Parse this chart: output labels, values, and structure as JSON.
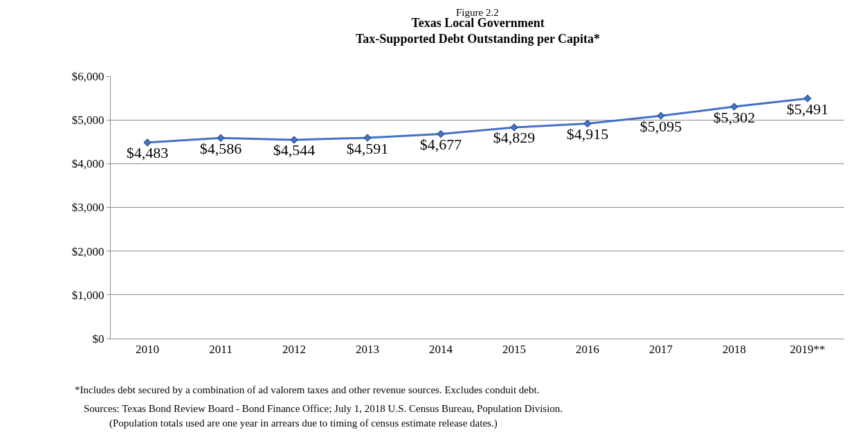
{
  "chart_data": {
    "type": "line",
    "subtitle": "Figure 2.2",
    "title": "Texas Local Government\nTax-Supported Debt Outstanding per Capita*",
    "categories": [
      "2010",
      "2011",
      "2012",
      "2013",
      "2014",
      "2015",
      "2016",
      "2017",
      "2018",
      "2019**"
    ],
    "series": [
      {
        "color": "#4472c4",
        "values": [
          4483,
          4586,
          4544,
          4591,
          4677,
          4829,
          4915,
          5095,
          5302,
          5491
        ]
      }
    ],
    "value_labels": [
      "$4,483",
      "$4,586",
      "$4,544",
      "$4,591",
      "$4,677",
      "$4,829",
      "$4,915",
      "$5,095",
      "$5,302",
      "$5,491"
    ],
    "ylim": [
      0,
      6000
    ],
    "yticks": [
      {
        "value": 0,
        "label": "$0"
      },
      {
        "value": 1000,
        "label": "$1,000"
      },
      {
        "value": 2000,
        "label": "$2,000"
      },
      {
        "value": 3000,
        "label": "$3,000"
      },
      {
        "value": 4000,
        "label": "$4,000"
      },
      {
        "value": 5000,
        "label": "$5,000"
      },
      {
        "value": 6000,
        "label": "$6,000"
      }
    ],
    "grid": "y",
    "marker": "diamond",
    "line_style": "solid",
    "legend": false,
    "annotations": [
      "*Includes debt secured by a combination of ad valorem taxes and other revenue sources. Excludes conduit debt.",
      "Sources: Texas Bond Review Board - Bond Finance Office; July 1, 2018 U.S. Census Bureau, Population Division.",
      "(Population totals used are one year in arrears due to timing of census estimate release dates.)"
    ]
  }
}
